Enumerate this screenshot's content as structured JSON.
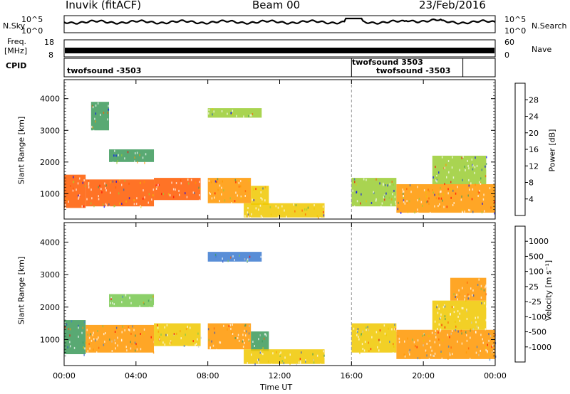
{
  "header": {
    "station": "Inuvik (fitACF)",
    "beam": "Beam 00",
    "date": "23/Feb/2016"
  },
  "strips": {
    "nsky_label": "N.Sky",
    "nsky_ticks": [
      "10^5",
      "10^0"
    ],
    "nsearch_label": "N.Search",
    "nsearch_ticks": [
      "10^5",
      "10^0"
    ],
    "freq_label": "Freq.",
    "freq_unit": "[MHz]",
    "freq_ticks": [
      "18",
      "8"
    ],
    "nave_label": "Nave",
    "nave_ticks": [
      "60",
      "0"
    ],
    "cpid_label": "CPID",
    "cpid_entries": [
      {
        "text": "twofsound -3503",
        "start_hour": 0
      },
      {
        "text": "twofsound 3503",
        "start_hour": 16
      },
      {
        "text": "twofsound -3503",
        "start_hour": 22.2
      }
    ]
  },
  "chart_data": [
    {
      "type": "heatmap",
      "panel": "power",
      "ylabel": "Slant Range [km]",
      "xlabel": "",
      "ylim": [
        200,
        4600
      ],
      "yticks": [
        "1000",
        "2000",
        "3000",
        "4000"
      ],
      "xlim": [
        "00:00",
        "24:00"
      ],
      "colorbar_label": "Power [dB]",
      "colorbar_ticks": [
        "28",
        "24",
        "20",
        "16",
        "12",
        "8",
        "4"
      ],
      "colorbar_colors": [
        "#ff0000",
        "#ff5a00",
        "#ff9600",
        "#f0c800",
        "#9acd32",
        "#3c9a5a",
        "#2d5fb4",
        "#0000ff"
      ],
      "echo_regions": [
        {
          "t_start": 0.0,
          "t_end": 1.2,
          "r_min": 550,
          "r_max": 1600,
          "level": 26
        },
        {
          "t_start": 1.2,
          "t_end": 5.0,
          "r_min": 600,
          "r_max": 1450,
          "level": 24
        },
        {
          "t_start": 5.0,
          "t_end": 7.6,
          "r_min": 800,
          "r_max": 1500,
          "level": 24
        },
        {
          "t_start": 8.0,
          "t_end": 10.4,
          "r_min": 700,
          "r_max": 1500,
          "level": 22
        },
        {
          "t_start": 10.4,
          "t_end": 11.4,
          "r_min": 650,
          "r_max": 1250,
          "level": 18
        },
        {
          "t_start": 10.0,
          "t_end": 14.5,
          "r_min": 250,
          "r_max": 700,
          "level": 16
        },
        {
          "t_start": 16.0,
          "t_end": 18.5,
          "r_min": 600,
          "r_max": 1500,
          "level": 14
        },
        {
          "t_start": 18.5,
          "t_end": 24.0,
          "r_min": 400,
          "r_max": 1300,
          "level": 22
        },
        {
          "t_start": 20.5,
          "t_end": 23.5,
          "r_min": 1300,
          "r_max": 2200,
          "level": 14
        },
        {
          "t_start": 2.5,
          "t_end": 5.0,
          "r_min": 2000,
          "r_max": 2400,
          "level": 10
        },
        {
          "t_start": 8.0,
          "t_end": 11.0,
          "r_min": 3400,
          "r_max": 3700,
          "level": 12
        },
        {
          "t_start": 1.5,
          "t_end": 2.5,
          "r_min": 3000,
          "r_max": 3900,
          "level": 8
        }
      ]
    },
    {
      "type": "heatmap",
      "panel": "velocity",
      "ylabel": "Slant Range [km]",
      "xlabel": "Time UT",
      "ylim": [
        200,
        4600
      ],
      "yticks": [
        "1000",
        "2000",
        "3000",
        "4000"
      ],
      "xticks": [
        "00:00",
        "04:00",
        "08:00",
        "12:00",
        "16:00",
        "20:00",
        "00:00"
      ],
      "xlim": [
        "00:00",
        "24:00"
      ],
      "colorbar_label": "Velocity [m s⁻¹]",
      "colorbar_ticks": [
        "1000",
        "500",
        "100",
        "25",
        "-25",
        "-100",
        "-500",
        "-1000"
      ],
      "colorbar_colors": [
        "#2850c8",
        "#3c7ad0",
        "#3c9a5a",
        "#78c850",
        "#c8c8c8",
        "#f0c800",
        "#ff9600",
        "#ff5a00",
        "#ff0000"
      ],
      "echo_regions": [
        {
          "t_start": 0.0,
          "t_end": 1.2,
          "r_min": 550,
          "r_max": 1600,
          "level": "100"
        },
        {
          "t_start": 1.2,
          "t_end": 5.0,
          "r_min": 600,
          "r_max": 1450,
          "level": "-500"
        },
        {
          "t_start": 5.0,
          "t_end": 7.6,
          "r_min": 800,
          "r_max": 1500,
          "level": "-100"
        },
        {
          "t_start": 8.0,
          "t_end": 10.4,
          "r_min": 700,
          "r_max": 1500,
          "level": "-500"
        },
        {
          "t_start": 10.4,
          "t_end": 11.4,
          "r_min": 650,
          "r_max": 1250,
          "level": "100"
        },
        {
          "t_start": 10.0,
          "t_end": 14.5,
          "r_min": 250,
          "r_max": 700,
          "level": "-100"
        },
        {
          "t_start": 16.0,
          "t_end": 18.5,
          "r_min": 600,
          "r_max": 1500,
          "level": "-100"
        },
        {
          "t_start": 18.5,
          "t_end": 24.0,
          "r_min": 400,
          "r_max": 1300,
          "level": "-500"
        },
        {
          "t_start": 20.5,
          "t_end": 23.5,
          "r_min": 1300,
          "r_max": 2200,
          "level": "-100"
        },
        {
          "t_start": 2.5,
          "t_end": 5.0,
          "r_min": 2000,
          "r_max": 2400,
          "level": "25"
        },
        {
          "t_start": 8.0,
          "t_end": 11.0,
          "r_min": 3400,
          "r_max": 3700,
          "level": "500"
        },
        {
          "t_start": 21.5,
          "t_end": 23.5,
          "r_min": 2200,
          "r_max": 2900,
          "level": "-500"
        }
      ]
    }
  ]
}
